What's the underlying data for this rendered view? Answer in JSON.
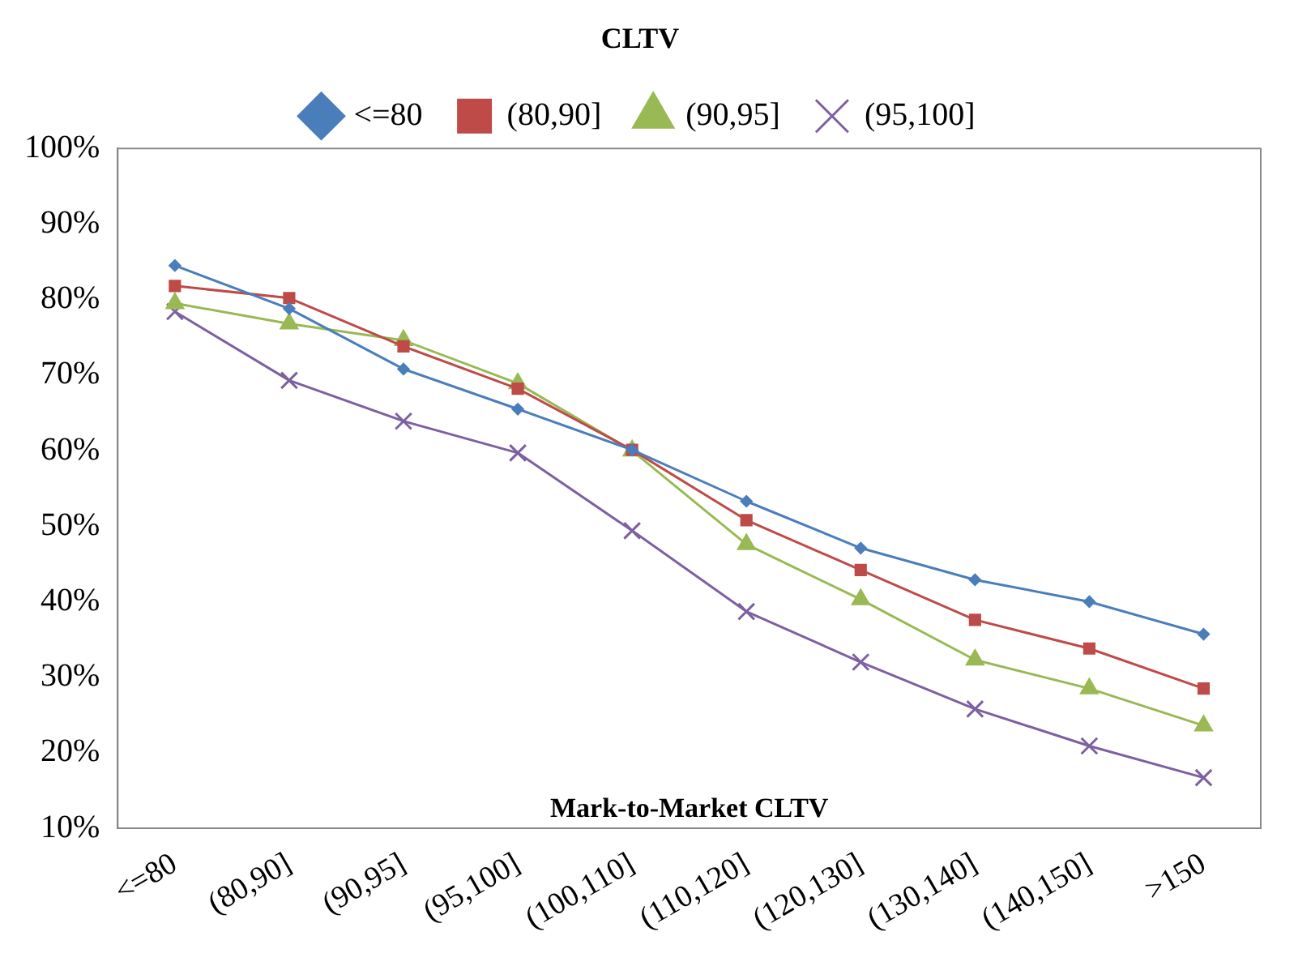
{
  "chart_data": {
    "type": "line",
    "xlabel": "Mark-to-Market CLTV",
    "legend_title": "CLTV",
    "legend": "top",
    "grid": false,
    "categories": [
      "<=80",
      "(80,90]",
      "(90,95]",
      "(95,100]",
      "(100,110]",
      "(110,120]",
      "(120,130]",
      "(130,140]",
      "(140,150]",
      ">150"
    ],
    "ylim": [
      10,
      100
    ],
    "yticks": [
      {
        "value": 10,
        "label": "10%"
      },
      {
        "value": 20,
        "label": "20%"
      },
      {
        "value": 30,
        "label": "30%"
      },
      {
        "value": 40,
        "label": "40%"
      },
      {
        "value": 50,
        "label": "50%"
      },
      {
        "value": 60,
        "label": "60%"
      },
      {
        "value": 70,
        "label": "70%"
      },
      {
        "value": 80,
        "label": "80%"
      },
      {
        "value": 90,
        "label": "90%"
      },
      {
        "value": 100,
        "label": "100%"
      }
    ],
    "series": [
      {
        "name": "<=80",
        "color": "#4a7ebb",
        "marker": "diamond",
        "values": [
          84.5,
          78.8,
          70.8,
          65.5,
          60.1,
          53.3,
          47.1,
          42.9,
          40.0,
          35.7
        ]
      },
      {
        "name": "(80,90]",
        "color": "#be4b48",
        "marker": "square",
        "values": [
          81.8,
          80.2,
          73.8,
          68.2,
          60.1,
          50.8,
          44.2,
          37.6,
          33.8,
          28.5
        ]
      },
      {
        "name": "(90,95]",
        "color": "#98b954",
        "marker": "triangle",
        "values": [
          79.5,
          76.8,
          74.6,
          68.9,
          60.0,
          47.6,
          40.3,
          32.3,
          28.5,
          23.6
        ]
      },
      {
        "name": "(95,100]",
        "color": "#7d60a0",
        "marker": "cross",
        "values": [
          78.4,
          69.3,
          63.9,
          59.7,
          49.4,
          38.7,
          32.0,
          25.8,
          20.9,
          16.7
        ]
      }
    ]
  }
}
